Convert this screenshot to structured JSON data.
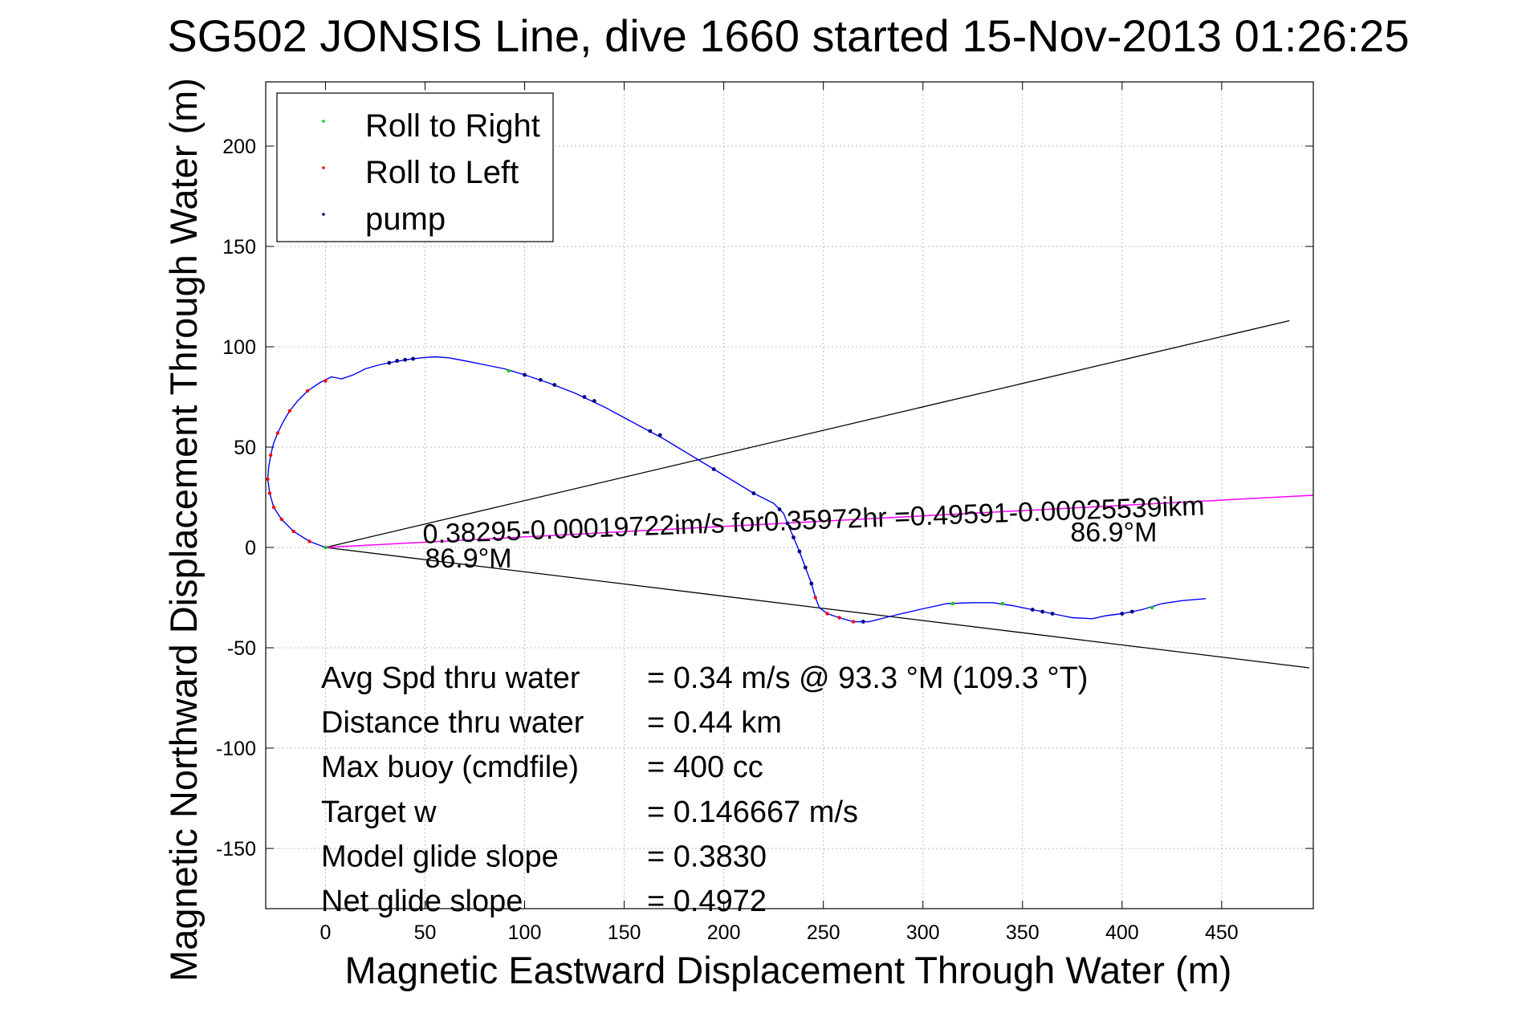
{
  "chart_data": {
    "type": "line",
    "title": "SG502 JONSIS Line, dive 1660 started 15-Nov-2013 01:26:25",
    "xlabel": "Magnetic Eastward Displacement Through Water (m)",
    "ylabel": "Magnetic Northward Displacement Through Water (m)",
    "xlim": [
      -30,
      496
    ],
    "ylim": [
      -180,
      232
    ],
    "xticks": [
      0,
      50,
      100,
      150,
      200,
      250,
      300,
      350,
      400,
      450
    ],
    "yticks": [
      -150,
      -100,
      -50,
      0,
      50,
      100,
      150,
      200
    ],
    "grid": true,
    "legend_position": "top-left",
    "colors": {
      "track": "#0000ff",
      "roll_right": "#00cc00",
      "roll_left": "#ff0000",
      "pump": "#000080",
      "heading_line": "#ff00ff",
      "cone": "#000000"
    },
    "legend": [
      "Roll to Right",
      "Roll to Left",
      "pump"
    ],
    "track": [
      [
        0,
        0
      ],
      [
        -8,
        3
      ],
      [
        -16,
        8
      ],
      [
        -22,
        14
      ],
      [
        -26,
        20
      ],
      [
        -28,
        27
      ],
      [
        -29,
        34
      ],
      [
        -28.5,
        40
      ],
      [
        -27.5,
        46
      ],
      [
        -26,
        52
      ],
      [
        -24,
        57
      ],
      [
        -21,
        63
      ],
      [
        -18,
        68
      ],
      [
        -14,
        73
      ],
      [
        -9,
        78
      ],
      [
        -3,
        82
      ],
      [
        3,
        85
      ],
      [
        8,
        84
      ],
      [
        14,
        86
      ],
      [
        20,
        89
      ],
      [
        27,
        91
      ],
      [
        32,
        92
      ],
      [
        40,
        93.5
      ],
      [
        48,
        94.5
      ],
      [
        55,
        95
      ],
      [
        62,
        94.5
      ],
      [
        70,
        93
      ],
      [
        80,
        91
      ],
      [
        90,
        89
      ],
      [
        100,
        86
      ],
      [
        112,
        82
      ],
      [
        125,
        77
      ],
      [
        140,
        70
      ],
      [
        155,
        62
      ],
      [
        170,
        54
      ],
      [
        185,
        45
      ],
      [
        200,
        36
      ],
      [
        215,
        27
      ],
      [
        225,
        22
      ],
      [
        230,
        17
      ],
      [
        232,
        12
      ],
      [
        235,
        5
      ],
      [
        238,
        -2
      ],
      [
        241,
        -10
      ],
      [
        244,
        -18
      ],
      [
        246,
        -25
      ],
      [
        248,
        -30
      ],
      [
        252,
        -33
      ],
      [
        258,
        -35
      ],
      [
        265,
        -37
      ],
      [
        273,
        -37
      ],
      [
        285,
        -34
      ],
      [
        298,
        -31
      ],
      [
        312,
        -28
      ],
      [
        325,
        -27.5
      ],
      [
        335,
        -27.5
      ],
      [
        345,
        -29
      ],
      [
        355,
        -31
      ],
      [
        365,
        -33
      ],
      [
        375,
        -35
      ],
      [
        385,
        -35.5
      ],
      [
        392,
        -34
      ],
      [
        400,
        -33
      ],
      [
        410,
        -31
      ],
      [
        420,
        -28
      ],
      [
        430,
        -26.5
      ],
      [
        442,
        -25.5
      ]
    ],
    "roll_left_samples": [
      [
        -29,
        34
      ],
      [
        -27.5,
        46
      ],
      [
        -24,
        57
      ],
      [
        -18,
        68
      ],
      [
        -9,
        78
      ],
      [
        0,
        83
      ],
      [
        -28,
        27
      ],
      [
        -26,
        20
      ],
      [
        -22,
        14
      ],
      [
        -16,
        8
      ],
      [
        -8,
        3
      ],
      [
        246,
        -25
      ],
      [
        252,
        -33
      ],
      [
        258,
        -35
      ],
      [
        265,
        -37
      ]
    ],
    "roll_right_samples": [
      [
        92,
        88
      ],
      [
        315,
        -28
      ],
      [
        340,
        -28
      ],
      [
        415,
        -30
      ],
      [
        0,
        0
      ]
    ],
    "pump_samples": [
      [
        32,
        92
      ],
      [
        36,
        93
      ],
      [
        40,
        93.5
      ],
      [
        44,
        94
      ],
      [
        100,
        86
      ],
      [
        108,
        83.5
      ],
      [
        115,
        81
      ],
      [
        130,
        75
      ],
      [
        135,
        73
      ],
      [
        163,
        58
      ],
      [
        168,
        56
      ],
      [
        195,
        39
      ],
      [
        215,
        27
      ],
      [
        228,
        19
      ],
      [
        232,
        12
      ],
      [
        235,
        5
      ],
      [
        238,
        -2
      ],
      [
        241,
        -10
      ],
      [
        244,
        -18
      ],
      [
        270,
        -37
      ],
      [
        355,
        -31
      ],
      [
        360,
        -32
      ],
      [
        365,
        -33
      ],
      [
        400,
        -33
      ],
      [
        405,
        -32
      ]
    ],
    "cone_lines": [
      {
        "from": [
          0,
          0
        ],
        "to": [
          484,
          113
        ]
      },
      {
        "from": [
          0,
          0
        ],
        "to": [
          494,
          -60
        ]
      }
    ],
    "heading_line": {
      "from": [
        0,
        0
      ],
      "to": [
        496,
        26
      ]
    },
    "annotations": [
      {
        "text": "0.38295-0.00019722im/s for0.35972hr =0.49591-0.00025539ikm",
        "x": 49,
        "y": 2,
        "angle": -2.1
      },
      {
        "text": "86.9°M",
        "x": 50,
        "y": -10,
        "angle": 0
      },
      {
        "text": "86.9°M",
        "x": 374,
        "y": 3,
        "angle": 0
      }
    ],
    "stats": [
      {
        "label": "Avg Spd thru water",
        "value": "=  0.34 m/s @  93.3 °M (109.3 °T)"
      },
      {
        "label": "Distance thru water",
        "value": "=  0.44 km"
      },
      {
        "label": "Max buoy (cmdfile)",
        "value": "= 400 cc"
      },
      {
        "label": "Target w",
        "value": "= 0.146667 m/s"
      },
      {
        "label": "Model glide slope",
        "value": "= 0.3830"
      },
      {
        "label": "Net glide slope",
        "value": "= 0.4972"
      }
    ]
  }
}
